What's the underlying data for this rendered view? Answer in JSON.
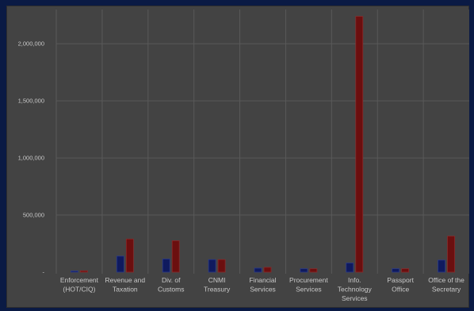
{
  "chart_data": {
    "type": "bar",
    "title": "",
    "xlabel": "",
    "ylabel": "",
    "ylim": [
      0,
      2300000
    ],
    "yticks": [
      0,
      500000,
      1000000,
      1500000,
      2000000
    ],
    "ytick_labels": [
      "-",
      "500,000",
      "1,000,000",
      "1,500,000",
      "2,000,000"
    ],
    "categories": [
      [
        "Enforcement",
        "(HOT/CIQ)"
      ],
      [
        "Revenue and",
        "Taxation"
      ],
      [
        "Div. of",
        "Customs"
      ],
      [
        "CNMI",
        "Treasury"
      ],
      [
        "Financial",
        "Services"
      ],
      [
        "Procurement",
        "Services"
      ],
      [
        "Info.",
        "Technology",
        "Services"
      ],
      [
        "Passport",
        "Office"
      ],
      [
        "Office of the",
        "Secretary"
      ]
    ],
    "series": [
      {
        "color": "#0f1a5e",
        "values": [
          10000,
          140000,
          115000,
          110000,
          35000,
          30000,
          80000,
          30000,
          105000
        ]
      },
      {
        "color": "#6b0f0f",
        "values": [
          12000,
          290000,
          275000,
          110000,
          42000,
          30000,
          2240000,
          30000,
          315000
        ]
      }
    ],
    "grid": true,
    "legend": "none"
  }
}
